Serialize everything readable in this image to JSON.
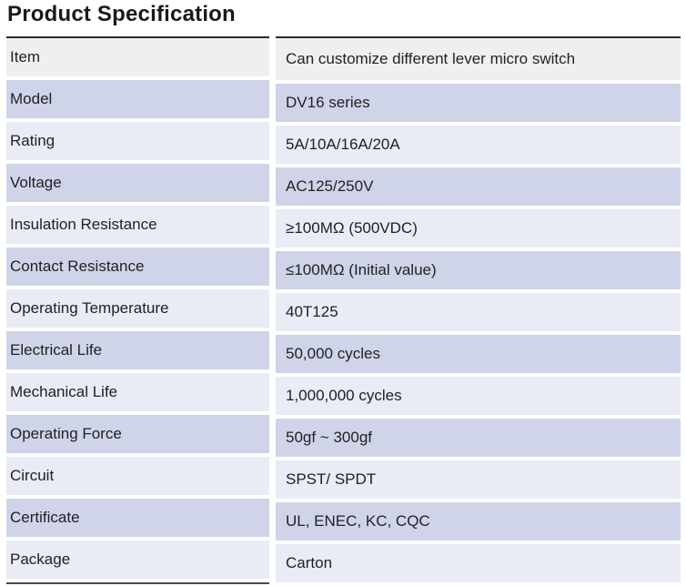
{
  "page": {
    "title": "Product Specification"
  },
  "colors": {
    "header_row_bg": "#efefef",
    "lavender_row_bg": "#cfd4e9",
    "pale_row_bg": "#e9ebf5",
    "border": "#2b2b2b",
    "text": "#222222"
  },
  "table": {
    "rows": [
      {
        "label": "Item",
        "value": "Can customize different lever micro switch"
      },
      {
        "label": "Model",
        "value": "DV16 series"
      },
      {
        "label": "Rating",
        "value": "5A/10A/16A/20A"
      },
      {
        "label": "Voltage",
        "value": "AC125/250V"
      },
      {
        "label": "Insulation Resistance",
        "value": "≥100MΩ (500VDC)"
      },
      {
        "label": "Contact Resistance",
        "value": "≤100MΩ (Initial value)"
      },
      {
        "label": "Operating Temperature",
        "value": "40T125"
      },
      {
        "label": "Electrical Life",
        "value": "50,000 cycles"
      },
      {
        "label": "Mechanical Life",
        "value": "1,000,000 cycles"
      },
      {
        "label": "Operating Force",
        "value": "50gf ~ 300gf"
      },
      {
        "label": "Circuit",
        "value": "SPST/ SPDT"
      },
      {
        "label": "Certificate",
        "value": "UL, ENEC, KC, CQC"
      },
      {
        "label": "Package",
        "value": "Carton"
      }
    ]
  }
}
